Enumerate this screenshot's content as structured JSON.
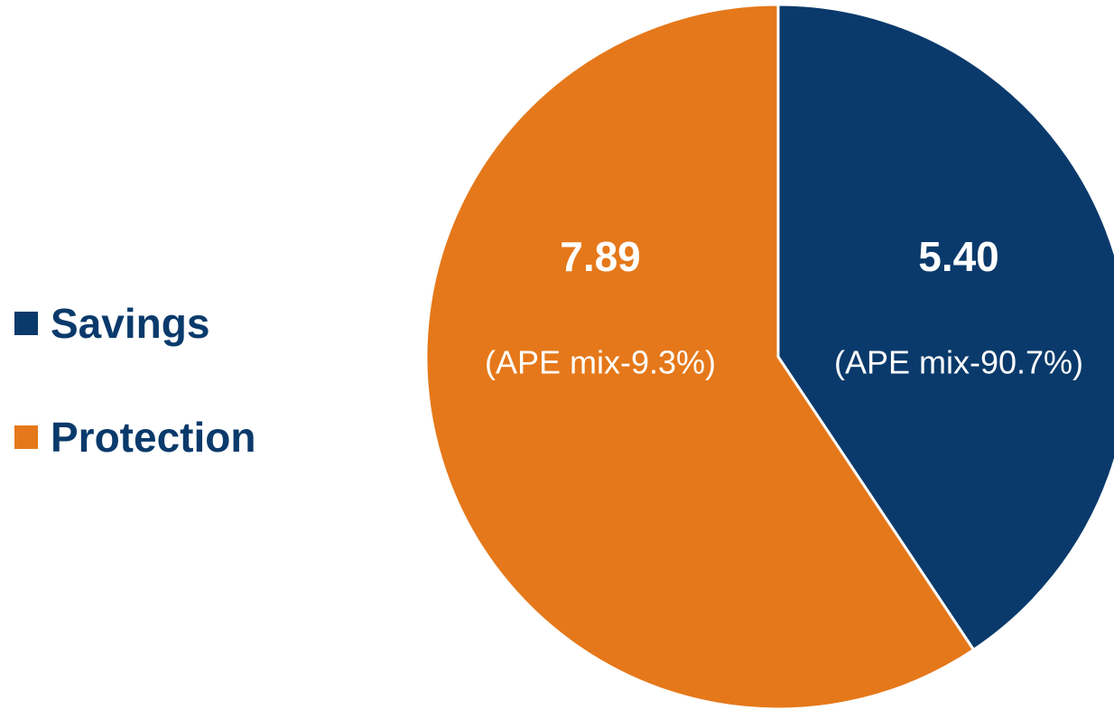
{
  "chart_data": {
    "type": "pie",
    "slices": [
      {
        "name": "Savings",
        "value": 5.4,
        "value_label": "5.40",
        "sub_label": "(APE mix-90.7%)",
        "color": "#0a3a6b"
      },
      {
        "name": "Protection",
        "value": 7.89,
        "value_label": "7.89",
        "sub_label": "(APE mix-9.3%)",
        "color": "#e5781a"
      }
    ],
    "legend_position": "left",
    "start_angle_deg": 0,
    "direction": "clockwise",
    "label_color": "#ffffff",
    "separator_color": "#ffffff"
  }
}
